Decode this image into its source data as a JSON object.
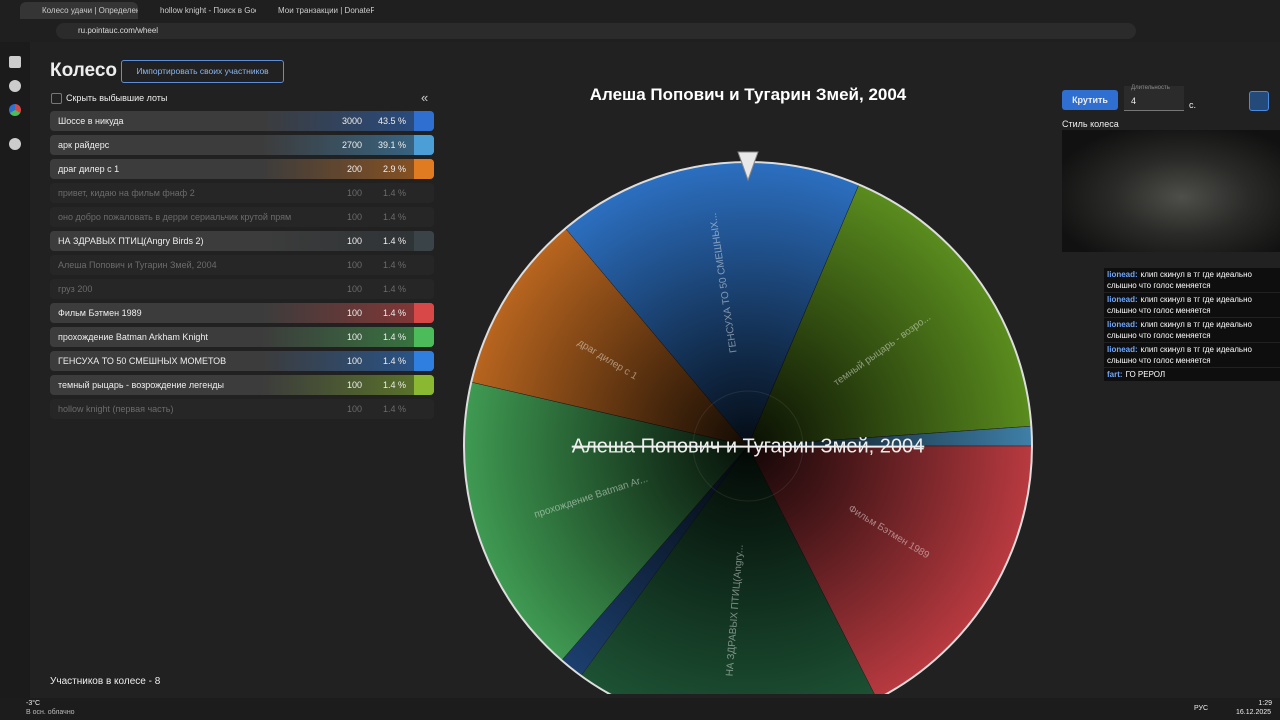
{
  "browser": {
    "tabs": [
      "Колесо удачи | Определение по...",
      "hollow knight - Поиск в Google",
      "Мои транзакции | DonatePay"
    ],
    "url": "ru.pointauc.com/wheel"
  },
  "header": {
    "title": "Колесо",
    "import_button": "Импортировать своих участников"
  },
  "filter": {
    "hide_eliminated": "Скрыть выбывшие лоты"
  },
  "lots": [
    {
      "name": "Шоссе в никуда",
      "amount": 3000,
      "percent": "43.5 %",
      "eliminated": false,
      "color": "#2f6fd1"
    },
    {
      "name": "арк райдерс",
      "amount": 2700,
      "percent": "39.1 %",
      "eliminated": false,
      "color": "#4b9ed6"
    },
    {
      "name": "драг дилер с 1",
      "amount": 200,
      "percent": "2.9 %",
      "eliminated": false,
      "color": "#e07b22"
    },
    {
      "name": "привет, кидаю на фильм фнаф 2",
      "amount": 100,
      "percent": "1.4 %",
      "eliminated": true
    },
    {
      "name": "оно добро пожаловать в дерри сериальчик крутой прям",
      "amount": 100,
      "percent": "1.4 %",
      "eliminated": true
    },
    {
      "name": "НА ЗДРАВЫХ ПТИЦ(Angry Birds 2)",
      "amount": 100,
      "percent": "1.4 %",
      "eliminated": false,
      "color": "#3a4348"
    },
    {
      "name": "Алеша Попович и Тугарин Змей, 2004",
      "amount": 100,
      "percent": "1.4 %",
      "eliminated": true
    },
    {
      "name": "груз 200",
      "amount": 100,
      "percent": "1.4 %",
      "eliminated": true
    },
    {
      "name": "Фильм Бэтмен 1989",
      "amount": 100,
      "percent": "1.4 %",
      "eliminated": false,
      "color": "#d84848"
    },
    {
      "name": "прохождение Batman Arkham Knight",
      "amount": 100,
      "percent": "1.4 %",
      "eliminated": false,
      "color": "#4cbb5a"
    },
    {
      "name": "ГЕНСУХА ТО 50 СМЕШНЫХ МОМЕТОВ",
      "amount": 100,
      "percent": "1.4 %",
      "eliminated": false,
      "color": "#2f7fe0"
    },
    {
      "name": "темный рыцарь - возрождение легенды",
      "amount": 100,
      "percent": "1.4 %",
      "eliminated": false,
      "color": "#8ab833"
    },
    {
      "name": "hollow knight (первая часть)",
      "amount": 100,
      "percent": "1.4 %",
      "eliminated": true
    }
  ],
  "wheel": {
    "title": "Алеша Попович и Тугарин Змей, 2004",
    "winner": "Алеша Попович и Тугарин Змей, 2004",
    "segments": [
      {
        "label": "ГЕНСУХА ТО 50 СМЕШНЫХ...",
        "color": "#2c6fc0"
      },
      {
        "label": "темный рыцарь - возро...",
        "color": "#5a8c1e"
      },
      {
        "label": "",
        "color": "#3f7fa8"
      },
      {
        "label": "Фильм Бэтмен 1989",
        "color": "#b83a40"
      },
      {
        "label": "НА ЗДРАВЫХ ПТИЦ(Angry...",
        "color": "#1d5234"
      },
      {
        "label": "",
        "color": "#1c3f6e"
      },
      {
        "label": "прохождение Batman Ar...",
        "color": "#3f9a52"
      },
      {
        "label": "драг дилер с 1",
        "color": "#b8651f"
      }
    ]
  },
  "controls": {
    "spin_button": "Крутить",
    "duration_label": "Длительность",
    "duration": 4,
    "duration_unit": "с.",
    "style_label": "Стиль колеса"
  },
  "chat": [
    {
      "user": "lionead:",
      "text": "клип скинул в тг где идеально слышно что голос меняется"
    },
    {
      "user": "lionead:",
      "text": "клип скинул в тг где идеально слышно что голос меняется"
    },
    {
      "user": "lionead:",
      "text": "клип скинул в тг где идеально слышно что голос меняется"
    },
    {
      "user": "lionead:",
      "text": "клип скинул в тг где идеально слышно что голос меняется"
    },
    {
      "user": "fart:",
      "text": "ГО РЕРОЛ"
    }
  ],
  "footer": {
    "participants": "Участников в колесе - 8"
  },
  "taskbar": {
    "temperature": "-3°C",
    "weather": "В осн. облачно",
    "language": "РУС",
    "time": "1:29",
    "date": "16.12.2025"
  }
}
